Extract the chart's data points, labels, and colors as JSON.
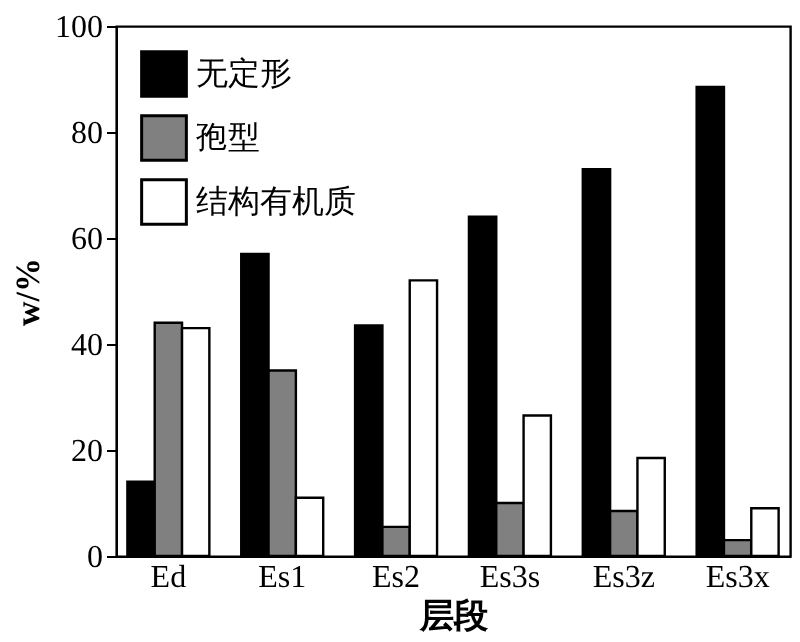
{
  "chart_data": {
    "type": "bar",
    "xlabel": "层段",
    "ylabel": "w/%",
    "categories": [
      "Ed",
      "Es1",
      "Es2",
      "Es3s",
      "Es3z",
      "Es3x"
    ],
    "series": [
      {
        "name": "无定形",
        "color": "#000000",
        "values": [
          14,
          57,
          43.5,
          64,
          73,
          88.5
        ]
      },
      {
        "name": "孢型",
        "color": "#808080",
        "values": [
          44,
          35,
          5.5,
          10,
          8.5,
          3
        ]
      },
      {
        "name": "结构有机质",
        "color": "#ffffff",
        "values": [
          43,
          11,
          52,
          26.5,
          18.5,
          9
        ]
      }
    ],
    "ylim": [
      0,
      100
    ],
    "yticks": [
      0,
      20,
      40,
      60,
      80,
      100
    ],
    "grid": false,
    "legend": "top left"
  }
}
